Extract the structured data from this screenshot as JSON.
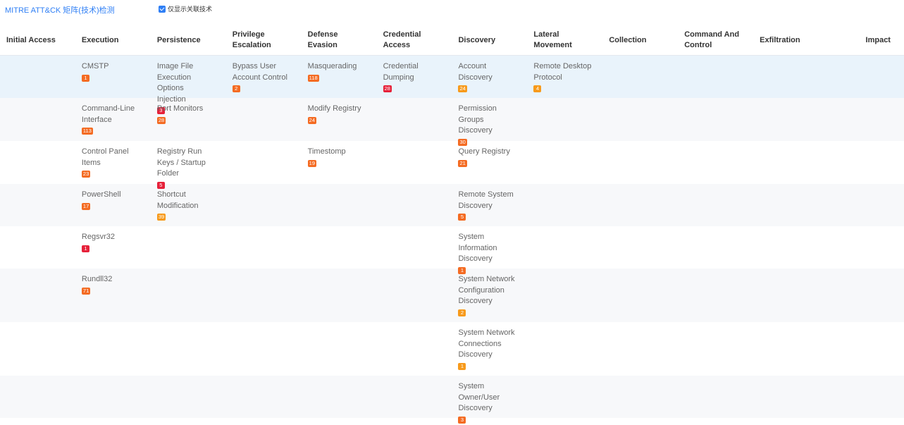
{
  "header": {
    "title": "MITRE ATT&CK 矩阵(技术)检测",
    "filter_label": "仅显示关联技术",
    "filter_checked": true
  },
  "colors": {
    "accent": "#2f7ff5",
    "badge_red": "#e6213a",
    "badge_orange": "#f46b22",
    "badge_amber": "#f79a1b",
    "row_highlight": "#e9f3fb",
    "row_alt": "#f7f8fa"
  },
  "columns": [
    "Initial Access",
    "Execution",
    "Persistence",
    "Privilege Escalation",
    "Defense Evasion",
    "Credential Access",
    "Discovery",
    "Lateral Movement",
    "Collection",
    "Command And Control",
    "Exfiltration",
    "Impact"
  ],
  "rows": [
    {
      "style": "highlight",
      "cells": [
        null,
        {
          "name": "CMSTP",
          "count": "1",
          "level": "orange"
        },
        {
          "name": "Image File Execution Options Injection",
          "count": "3",
          "level": "red"
        },
        {
          "name": "Bypass User Account Control",
          "count": "2",
          "level": "orange"
        },
        {
          "name": "Masquerading",
          "count": "118",
          "level": "orange"
        },
        {
          "name": "Credential Dumping",
          "count": "28",
          "level": "red"
        },
        {
          "name": "Account Discovery",
          "count": "24",
          "level": "amber"
        },
        {
          "name": "Remote Desktop Protocol",
          "count": "4",
          "level": "amber"
        },
        null,
        null,
        null,
        null
      ]
    },
    {
      "style": "alt",
      "cells": [
        null,
        {
          "name": "Command-Line Interface",
          "count": "113",
          "level": "orange"
        },
        {
          "name": "Port Monitors",
          "count": "28",
          "level": "orange"
        },
        null,
        {
          "name": "Modify Registry",
          "count": "24",
          "level": "orange"
        },
        null,
        {
          "name": "Permission Groups Discovery",
          "count": "30",
          "level": "orange"
        },
        null,
        null,
        null,
        null,
        null
      ]
    },
    {
      "style": "plain",
      "cells": [
        null,
        {
          "name": "Control Panel Items",
          "count": "23",
          "level": "orange"
        },
        {
          "name": "Registry Run Keys / Startup Folder",
          "count": "5",
          "level": "red"
        },
        null,
        {
          "name": "Timestomp",
          "count": "19",
          "level": "orange"
        },
        null,
        {
          "name": "Query Registry",
          "count": "21",
          "level": "orange"
        },
        null,
        null,
        null,
        null,
        null
      ]
    },
    {
      "style": "alt",
      "cells": [
        null,
        {
          "name": "PowerShell",
          "count": "17",
          "level": "orange"
        },
        {
          "name": "Shortcut Modification",
          "count": "39",
          "level": "amber"
        },
        null,
        null,
        null,
        {
          "name": "Remote System Discovery",
          "count": "5",
          "level": "orange"
        },
        null,
        null,
        null,
        null,
        null
      ]
    },
    {
      "style": "plain",
      "cells": [
        null,
        {
          "name": "Regsvr32",
          "count": "1",
          "level": "red"
        },
        null,
        null,
        null,
        null,
        {
          "name": "System Information Discovery",
          "count": "1",
          "level": "orange"
        },
        null,
        null,
        null,
        null,
        null
      ]
    },
    {
      "style": "alt",
      "cells": [
        null,
        {
          "name": "Rundll32",
          "count": "71",
          "level": "orange"
        },
        null,
        null,
        null,
        null,
        {
          "name": "System Network Configuration Discovery",
          "count": "2",
          "level": "amber"
        },
        null,
        null,
        null,
        null,
        null
      ]
    },
    {
      "style": "plain",
      "cells": [
        null,
        null,
        null,
        null,
        null,
        null,
        {
          "name": "System Network Connections Discovery",
          "count": "1",
          "level": "amber"
        },
        null,
        null,
        null,
        null,
        null
      ]
    },
    {
      "style": "alt",
      "cells": [
        null,
        null,
        null,
        null,
        null,
        null,
        {
          "name": "System Owner/User Discovery",
          "count": "3",
          "level": "orange"
        },
        null,
        null,
        null,
        null,
        null
      ]
    }
  ]
}
